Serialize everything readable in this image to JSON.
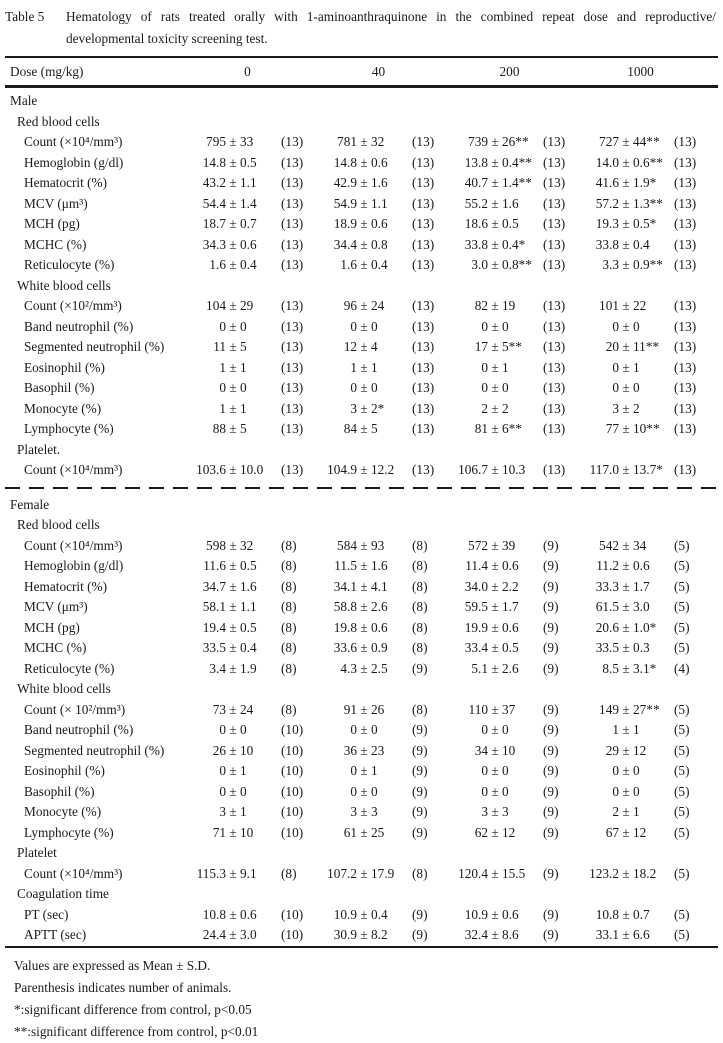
{
  "title": {
    "label": "Table 5",
    "line1": "Hematology of rats treated orally with 1-aminoanthraquinone in the combined repeat dose and reproductive/",
    "line2": "developmental toxicity screening test."
  },
  "header": {
    "dose_label": "Dose (mg/kg)",
    "doses": [
      "0",
      "40",
      "200",
      "1000"
    ]
  },
  "rows": [
    {
      "t": "g",
      "i": 1,
      "label": "Male"
    },
    {
      "t": "g",
      "i": 2,
      "label": "Red blood cells"
    },
    {
      "t": "d",
      "i": 3,
      "label": "Count (×10⁴/mm³)",
      "cells": [
        [
          "795",
          "33",
          "(13)"
        ],
        [
          "781",
          "32",
          "(13)"
        ],
        [
          "739",
          "26**",
          "(13)"
        ],
        [
          "727",
          "44**",
          "(13)"
        ]
      ]
    },
    {
      "t": "d",
      "i": 3,
      "label": "Hemoglobin (g/dl)",
      "cells": [
        [
          "14.8",
          "0.5",
          "(13)"
        ],
        [
          "14.8",
          "0.6",
          "(13)"
        ],
        [
          "13.8",
          "0.4**",
          "(13)"
        ],
        [
          "14.0",
          "0.6**",
          "(13)"
        ]
      ]
    },
    {
      "t": "d",
      "i": 3,
      "label": "Hematocrit (%)",
      "cells": [
        [
          "43.2",
          "1.1",
          "(13)"
        ],
        [
          "42.9",
          "1.6",
          "(13)"
        ],
        [
          "40.7",
          "1.4**",
          "(13)"
        ],
        [
          "41.6",
          "1.9*",
          "(13)"
        ]
      ]
    },
    {
      "t": "d",
      "i": 3,
      "label": "MCV (μm³)",
      "cells": [
        [
          "54.4",
          "1.4",
          "(13)"
        ],
        [
          "54.9",
          "1.1",
          "(13)"
        ],
        [
          "55.2",
          "1.6",
          "(13)"
        ],
        [
          "57.2",
          "1.3**",
          "(13)"
        ]
      ]
    },
    {
      "t": "d",
      "i": 3,
      "label": "MCH (pg)",
      "cells": [
        [
          "18.7",
          "0.7",
          "(13)"
        ],
        [
          "18.9",
          "0.6",
          "(13)"
        ],
        [
          "18.6",
          "0.5",
          "(13)"
        ],
        [
          "19.3",
          "0.5*",
          "(13)"
        ]
      ]
    },
    {
      "t": "d",
      "i": 3,
      "label": "MCHC (%)",
      "cells": [
        [
          "34.3",
          "0.6",
          "(13)"
        ],
        [
          "34.4",
          "0.8",
          "(13)"
        ],
        [
          "33.8",
          "0.4*",
          "(13)"
        ],
        [
          "33.8",
          "0.4",
          "(13)"
        ]
      ]
    },
    {
      "t": "d",
      "i": 3,
      "label": "Reticulocyte (%)",
      "cells": [
        [
          "1.6",
          "0.4",
          "(13)"
        ],
        [
          "1.6",
          "0.4",
          "(13)"
        ],
        [
          "3.0",
          "0.8**",
          "(13)"
        ],
        [
          "3.3",
          "0.9**",
          "(13)"
        ]
      ]
    },
    {
      "t": "g",
      "i": 2,
      "label": "White blood cells"
    },
    {
      "t": "d",
      "i": 3,
      "label": "Count (×10²/mm³)",
      "cells": [
        [
          "104",
          "29",
          "(13)"
        ],
        [
          "96",
          "24",
          "(13)"
        ],
        [
          "82",
          "19",
          "(13)"
        ],
        [
          "101",
          "22",
          "(13)"
        ]
      ]
    },
    {
      "t": "d",
      "i": 3,
      "label": "Band neutrophil (%)",
      "cells": [
        [
          "0",
          "0",
          "(13)"
        ],
        [
          "0",
          "0",
          "(13)"
        ],
        [
          "0",
          "0",
          "(13)"
        ],
        [
          "0",
          "0",
          "(13)"
        ]
      ]
    },
    {
      "t": "d",
      "i": 3,
      "label": "Segmented neutrophil (%)",
      "cells": [
        [
          "11",
          "5",
          "(13)"
        ],
        [
          "12",
          "4",
          "(13)"
        ],
        [
          "17",
          "5**",
          "(13)"
        ],
        [
          "20",
          "11**",
          "(13)"
        ]
      ]
    },
    {
      "t": "d",
      "i": 3,
      "label": "Eosinophil (%)",
      "cells": [
        [
          "1",
          "1",
          "(13)"
        ],
        [
          "1",
          "1",
          "(13)"
        ],
        [
          "0",
          "1",
          "(13)"
        ],
        [
          "0",
          "1",
          "(13)"
        ]
      ]
    },
    {
      "t": "d",
      "i": 3,
      "label": "Basophil (%)",
      "cells": [
        [
          "0",
          "0",
          "(13)"
        ],
        [
          "0",
          "0",
          "(13)"
        ],
        [
          "0",
          "0",
          "(13)"
        ],
        [
          "0",
          "0",
          "(13)"
        ]
      ]
    },
    {
      "t": "d",
      "i": 3,
      "label": "Monocyte (%)",
      "cells": [
        [
          "1",
          "1",
          "(13)"
        ],
        [
          "3",
          "2*",
          "(13)"
        ],
        [
          "2",
          "2",
          "(13)"
        ],
        [
          "3",
          "2",
          "(13)"
        ]
      ]
    },
    {
      "t": "d",
      "i": 3,
      "label": "Lymphocyte (%)",
      "cells": [
        [
          "88",
          "5",
          "(13)"
        ],
        [
          "84",
          "5",
          "(13)"
        ],
        [
          "81",
          "6**",
          "(13)"
        ],
        [
          "77",
          "10**",
          "(13)"
        ]
      ]
    },
    {
      "t": "g",
      "i": 2,
      "label": "Platelet."
    },
    {
      "t": "d",
      "i": 3,
      "label": "Count (×10⁴/mm³)",
      "cells": [
        [
          "103.6",
          "10.0",
          "(13)"
        ],
        [
          "104.9",
          "12.2",
          "(13)"
        ],
        [
          "106.7",
          "10.3",
          "(13)"
        ],
        [
          "117.0",
          "13.7*",
          "(13)"
        ]
      ]
    },
    {
      "t": "div"
    },
    {
      "t": "g",
      "i": 1,
      "label": "Female"
    },
    {
      "t": "g",
      "i": 2,
      "label": "Red blood cells"
    },
    {
      "t": "d",
      "i": 3,
      "label": "Count (×10⁴/mm³)",
      "cells": [
        [
          "598",
          "32",
          "(8)"
        ],
        [
          "584",
          "93",
          "(8)"
        ],
        [
          "572",
          "39",
          "(9)"
        ],
        [
          "542",
          "34",
          "(5)"
        ]
      ]
    },
    {
      "t": "d",
      "i": 3,
      "label": "Hemoglobin (g/dl)",
      "cells": [
        [
          "11.6",
          "0.5",
          "(8)"
        ],
        [
          "11.5",
          "1.6",
          "(8)"
        ],
        [
          "11.4",
          "0.6",
          "(9)"
        ],
        [
          "11.2",
          "0.6",
          "(5)"
        ]
      ]
    },
    {
      "t": "d",
      "i": 3,
      "label": "Hematocrit (%)",
      "cells": [
        [
          "34.7",
          "1.6",
          "(8)"
        ],
        [
          "34.1",
          "4.1",
          "(8)"
        ],
        [
          "34.0",
          "2.2",
          "(9)"
        ],
        [
          "33.3",
          "1.7",
          "(5)"
        ]
      ]
    },
    {
      "t": "d",
      "i": 3,
      "label": "MCV (μm³)",
      "cells": [
        [
          "58.1",
          "1.1",
          "(8)"
        ],
        [
          "58.8",
          "2.6",
          "(8)"
        ],
        [
          "59.5",
          "1.7",
          "(9)"
        ],
        [
          "61.5",
          "3.0",
          "(5)"
        ]
      ]
    },
    {
      "t": "d",
      "i": 3,
      "label": "MCH (pg)",
      "cells": [
        [
          "19.4",
          "0.5",
          "(8)"
        ],
        [
          "19.8",
          "0.6",
          "(8)"
        ],
        [
          "19.9",
          "0.6",
          "(9)"
        ],
        [
          "20.6",
          "1.0*",
          "(5)"
        ]
      ]
    },
    {
      "t": "d",
      "i": 3,
      "label": "MCHC (%)",
      "cells": [
        [
          "33.5",
          "0.4",
          "(8)"
        ],
        [
          "33.6",
          "0.9",
          "(8)"
        ],
        [
          "33.4",
          "0.5",
          "(9)"
        ],
        [
          "33.5",
          "0.3",
          "(5)"
        ]
      ]
    },
    {
      "t": "d",
      "i": 3,
      "label": "Reticulocyte (%)",
      "cells": [
        [
          "3.4",
          "1.9",
          "(8)"
        ],
        [
          "4.3",
          "2.5",
          "(9)"
        ],
        [
          "5.1",
          "2.6",
          "(9)"
        ],
        [
          "8.5",
          "3.1*",
          "(4)"
        ]
      ]
    },
    {
      "t": "g",
      "i": 2,
      "label": "White blood cells"
    },
    {
      "t": "d",
      "i": 3,
      "label": "Count (× 10²/mm³)",
      "cells": [
        [
          "73",
          "24",
          "(8)"
        ],
        [
          "91",
          "26",
          "(8)"
        ],
        [
          "110",
          "37",
          "(9)"
        ],
        [
          "149",
          "27**",
          "(5)"
        ]
      ]
    },
    {
      "t": "d",
      "i": 3,
      "label": "Band neutrophil (%)",
      "cells": [
        [
          "0",
          "0",
          "(10)"
        ],
        [
          "0",
          "0",
          "(9)"
        ],
        [
          "0",
          "0",
          "(9)"
        ],
        [
          "1",
          "1",
          "(5)"
        ]
      ]
    },
    {
      "t": "d",
      "i": 3,
      "label": "Segmented neutrophil (%)",
      "cells": [
        [
          "26",
          "10",
          "(10)"
        ],
        [
          "36",
          "23",
          "(9)"
        ],
        [
          "34",
          "10",
          "(9)"
        ],
        [
          "29",
          "12",
          "(5)"
        ]
      ]
    },
    {
      "t": "d",
      "i": 3,
      "label": "Eosinophil (%)",
      "cells": [
        [
          "0",
          "1",
          "(10)"
        ],
        [
          "0",
          "1",
          "(9)"
        ],
        [
          "0",
          "0",
          "(9)"
        ],
        [
          "0",
          "0",
          "(5)"
        ]
      ]
    },
    {
      "t": "d",
      "i": 3,
      "label": "Basophil (%)",
      "cells": [
        [
          "0",
          "0",
          "(10)"
        ],
        [
          "0",
          "0",
          "(9)"
        ],
        [
          "0",
          "0",
          "(9)"
        ],
        [
          "0",
          "0",
          "(5)"
        ]
      ]
    },
    {
      "t": "d",
      "i": 3,
      "label": "Monocyte (%)",
      "cells": [
        [
          "3",
          "1",
          "(10)"
        ],
        [
          "3",
          "3",
          "(9)"
        ],
        [
          "3",
          "3",
          "(9)"
        ],
        [
          "2",
          "1",
          "(5)"
        ]
      ]
    },
    {
      "t": "d",
      "i": 3,
      "label": "Lymphocyte (%)",
      "cells": [
        [
          "71",
          "10",
          "(10)"
        ],
        [
          "61",
          "25",
          "(9)"
        ],
        [
          "62",
          "12",
          "(9)"
        ],
        [
          "67",
          "12",
          "(5)"
        ]
      ]
    },
    {
      "t": "g",
      "i": 2,
      "label": "Platelet"
    },
    {
      "t": "d",
      "i": 3,
      "label": "Count (×10⁴/mm³)",
      "cells": [
        [
          "115.3",
          "9.1",
          "(8)"
        ],
        [
          "107.2",
          "17.9",
          "(8)"
        ],
        [
          "120.4",
          "15.5",
          "(9)"
        ],
        [
          "123.2",
          "18.2",
          "(5)"
        ]
      ]
    },
    {
      "t": "g",
      "i": 2,
      "label": "Coagulation time"
    },
    {
      "t": "d",
      "i": 3,
      "label": "PT (sec)",
      "cells": [
        [
          "10.8",
          "0.6",
          "(10)"
        ],
        [
          "10.9",
          "0.4",
          "(9)"
        ],
        [
          "10.9",
          "0.6",
          "(9)"
        ],
        [
          "10.8",
          "0.7",
          "(5)"
        ]
      ]
    },
    {
      "t": "d",
      "i": 3,
      "label": "APTT (sec)",
      "cells": [
        [
          "24.4",
          "3.0",
          "(10)"
        ],
        [
          "30.9",
          "8.2",
          "(9)"
        ],
        [
          "32.4",
          "8.6",
          "(9)"
        ],
        [
          "33.1",
          "6.6",
          "(5)"
        ]
      ]
    }
  ],
  "footnotes": [
    "Values are expressed as Mean ± S.D.",
    "Parenthesis indicates number of animals.",
    "*:significant difference from control, p<0.05",
    "**:significant difference from control, p<0.01"
  ]
}
